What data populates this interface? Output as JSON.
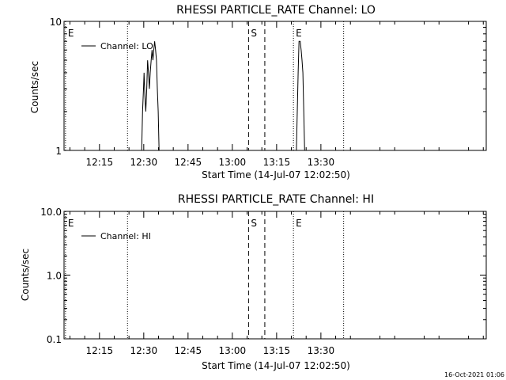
{
  "colors": {
    "background": "#ffffff",
    "foreground": "#000000"
  },
  "footer": {
    "timestamp": "16-Oct-2021 01:06"
  },
  "chart_data": [
    {
      "type": "line",
      "title": "RHESSI PARTICLE_RATE Channel: LO",
      "xlabel": "Start Time (14-Jul-07 12:02:50)",
      "ylabel": "Counts/sec",
      "xlim_min": [
        723,
        866
      ],
      "x_ticks": [
        {
          "min": 735,
          "label": "12:15"
        },
        {
          "min": 750,
          "label": "12:30"
        },
        {
          "min": 765,
          "label": "12:45"
        },
        {
          "min": 780,
          "label": "13:00"
        },
        {
          "min": 795,
          "label": "13:15"
        },
        {
          "min": 810,
          "label": "13:30"
        }
      ],
      "y_scale": "log",
      "ylim": [
        1,
        10
      ],
      "y_ticks": [
        {
          "value": 1,
          "label": "1"
        },
        {
          "value": 10,
          "label": "10"
        }
      ],
      "legend": {
        "placement": "top-left",
        "label": "Channel: LO"
      },
      "markers": [
        {
          "min": 723.5,
          "label": "E",
          "style": "dotted"
        },
        {
          "min": 744.5,
          "label": "",
          "style": "dotted"
        },
        {
          "min": 785.5,
          "label": "S",
          "style": "dashed"
        },
        {
          "min": 791.0,
          "label": "",
          "style": "dashed"
        },
        {
          "min": 800.7,
          "label": "E",
          "style": "dotted"
        },
        {
          "min": 817.7,
          "label": "",
          "style": "dotted"
        }
      ],
      "series": [
        {
          "name": "Channel: LO",
          "points": [
            [
              749.3,
              1.0
            ],
            [
              749.6,
              2.0
            ],
            [
              749.9,
              3.0
            ],
            [
              750.1,
              4.0
            ],
            [
              750.4,
              2.6
            ],
            [
              750.7,
              2.0
            ],
            [
              751.0,
              3.0
            ],
            [
              751.3,
              5.0
            ],
            [
              751.6,
              4.0
            ],
            [
              751.9,
              3.0
            ],
            [
              752.2,
              4.0
            ],
            [
              752.5,
              5.0
            ],
            [
              752.8,
              6.0
            ],
            [
              753.1,
              5.0
            ],
            [
              753.4,
              6.0
            ],
            [
              753.7,
              7.0
            ],
            [
              754.0,
              6.0
            ],
            [
              754.3,
              5.0
            ],
            [
              754.6,
              3.0
            ],
            [
              754.9,
              2.0
            ],
            [
              755.2,
              1.0
            ],
            [
              801.7,
              1.0
            ],
            [
              802.0,
              2.0
            ],
            [
              802.3,
              4.0
            ],
            [
              802.6,
              7.0
            ],
            [
              803.0,
              7.0
            ],
            [
              803.3,
              6.0
            ],
            [
              803.6,
              5.0
            ],
            [
              803.9,
              4.0
            ],
            [
              804.2,
              2.0
            ],
            [
              804.5,
              1.0
            ]
          ]
        }
      ]
    },
    {
      "type": "line",
      "title": "RHESSI PARTICLE_RATE Channel: HI",
      "xlabel": "Start Time (14-Jul-07 12:02:50)",
      "ylabel": "Counts/sec",
      "xlim_min": [
        723,
        866
      ],
      "x_ticks": [
        {
          "min": 735,
          "label": "12:15"
        },
        {
          "min": 750,
          "label": "12:30"
        },
        {
          "min": 765,
          "label": "12:45"
        },
        {
          "min": 780,
          "label": "13:00"
        },
        {
          "min": 795,
          "label": "13:15"
        },
        {
          "min": 810,
          "label": "13:30"
        }
      ],
      "y_scale": "log",
      "ylim": [
        0.1,
        10
      ],
      "y_ticks": [
        {
          "value": 0.1,
          "label": "0.1"
        },
        {
          "value": 1,
          "label": "1.0"
        },
        {
          "value": 10,
          "label": "10.0"
        }
      ],
      "legend": {
        "placement": "top-left",
        "label": "Channel: HI"
      },
      "markers": [
        {
          "min": 723.5,
          "label": "E",
          "style": "dotted"
        },
        {
          "min": 744.5,
          "label": "",
          "style": "dotted"
        },
        {
          "min": 785.5,
          "label": "S",
          "style": "dashed"
        },
        {
          "min": 791.0,
          "label": "",
          "style": "dashed"
        },
        {
          "min": 800.7,
          "label": "E",
          "style": "dotted"
        },
        {
          "min": 817.7,
          "label": "",
          "style": "dotted"
        }
      ],
      "series": [
        {
          "name": "Channel: HI",
          "points": []
        }
      ]
    }
  ]
}
